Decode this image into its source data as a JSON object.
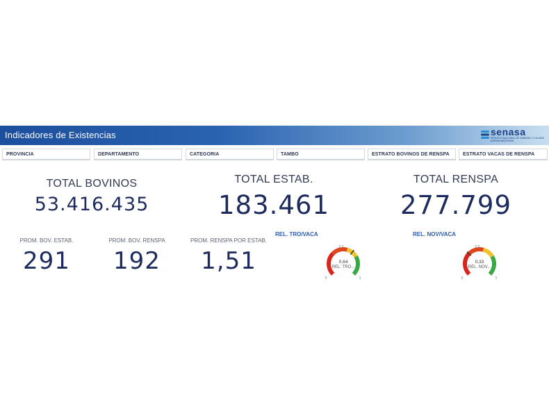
{
  "header": {
    "title": "Indicadores de Existencias",
    "logo": {
      "name": "senasa",
      "subtitle": "SERVICIO NACIONAL DE SANIDAD Y CALIDAD AGROALIMENTARIA",
      "icon": "senasa-logo-icon",
      "color": "#1c3f86"
    }
  },
  "filters": [
    {
      "label": "PROVINCIA"
    },
    {
      "label": "DEPARTAMENTO"
    },
    {
      "label": "CATEGORIA"
    },
    {
      "label": "TAMBO"
    },
    {
      "label": "ESTRATO BOVINOS DE RENSPA"
    },
    {
      "label": "ESTRATO VACAS DE RENSPA"
    }
  ],
  "kpis": {
    "total_bovinos": {
      "label": "TOTAL BOVINOS",
      "value": "53.416.435"
    },
    "total_estab": {
      "label": "TOTAL ESTAB.",
      "value": "183.461"
    },
    "total_renspa": {
      "label": "TOTAL RENSPA",
      "value": "277.799"
    },
    "prom_bov_estab": {
      "label": "PROM. BOV. ESTAB.",
      "value": "291"
    },
    "prom_bov_renspa": {
      "label": "PROM. BOV. RENSPA",
      "value": "192"
    },
    "prom_renspa_estab": {
      "label": "PROM. RENSPA POR ESTAB.",
      "value": "1,51"
    }
  },
  "gauges": [
    {
      "title": "REL. TRO/VACA",
      "value_text": "0,64",
      "value": 0.64,
      "sub": "REL. TRO...",
      "min": "0",
      "mid": "0,5",
      "max": "1"
    },
    {
      "title": "REL. NOV/VACA",
      "value_text": "0,33",
      "value": 0.33,
      "sub": "REL. NOV...",
      "min": "0",
      "mid": "0,5",
      "max": "1"
    }
  ],
  "colors": {
    "accent": "#1c4f9d",
    "kpi": "#1c2a5e",
    "gauge_red": "#d9261c",
    "gauge_yellow": "#f2c12e",
    "gauge_green": "#3aa845"
  }
}
